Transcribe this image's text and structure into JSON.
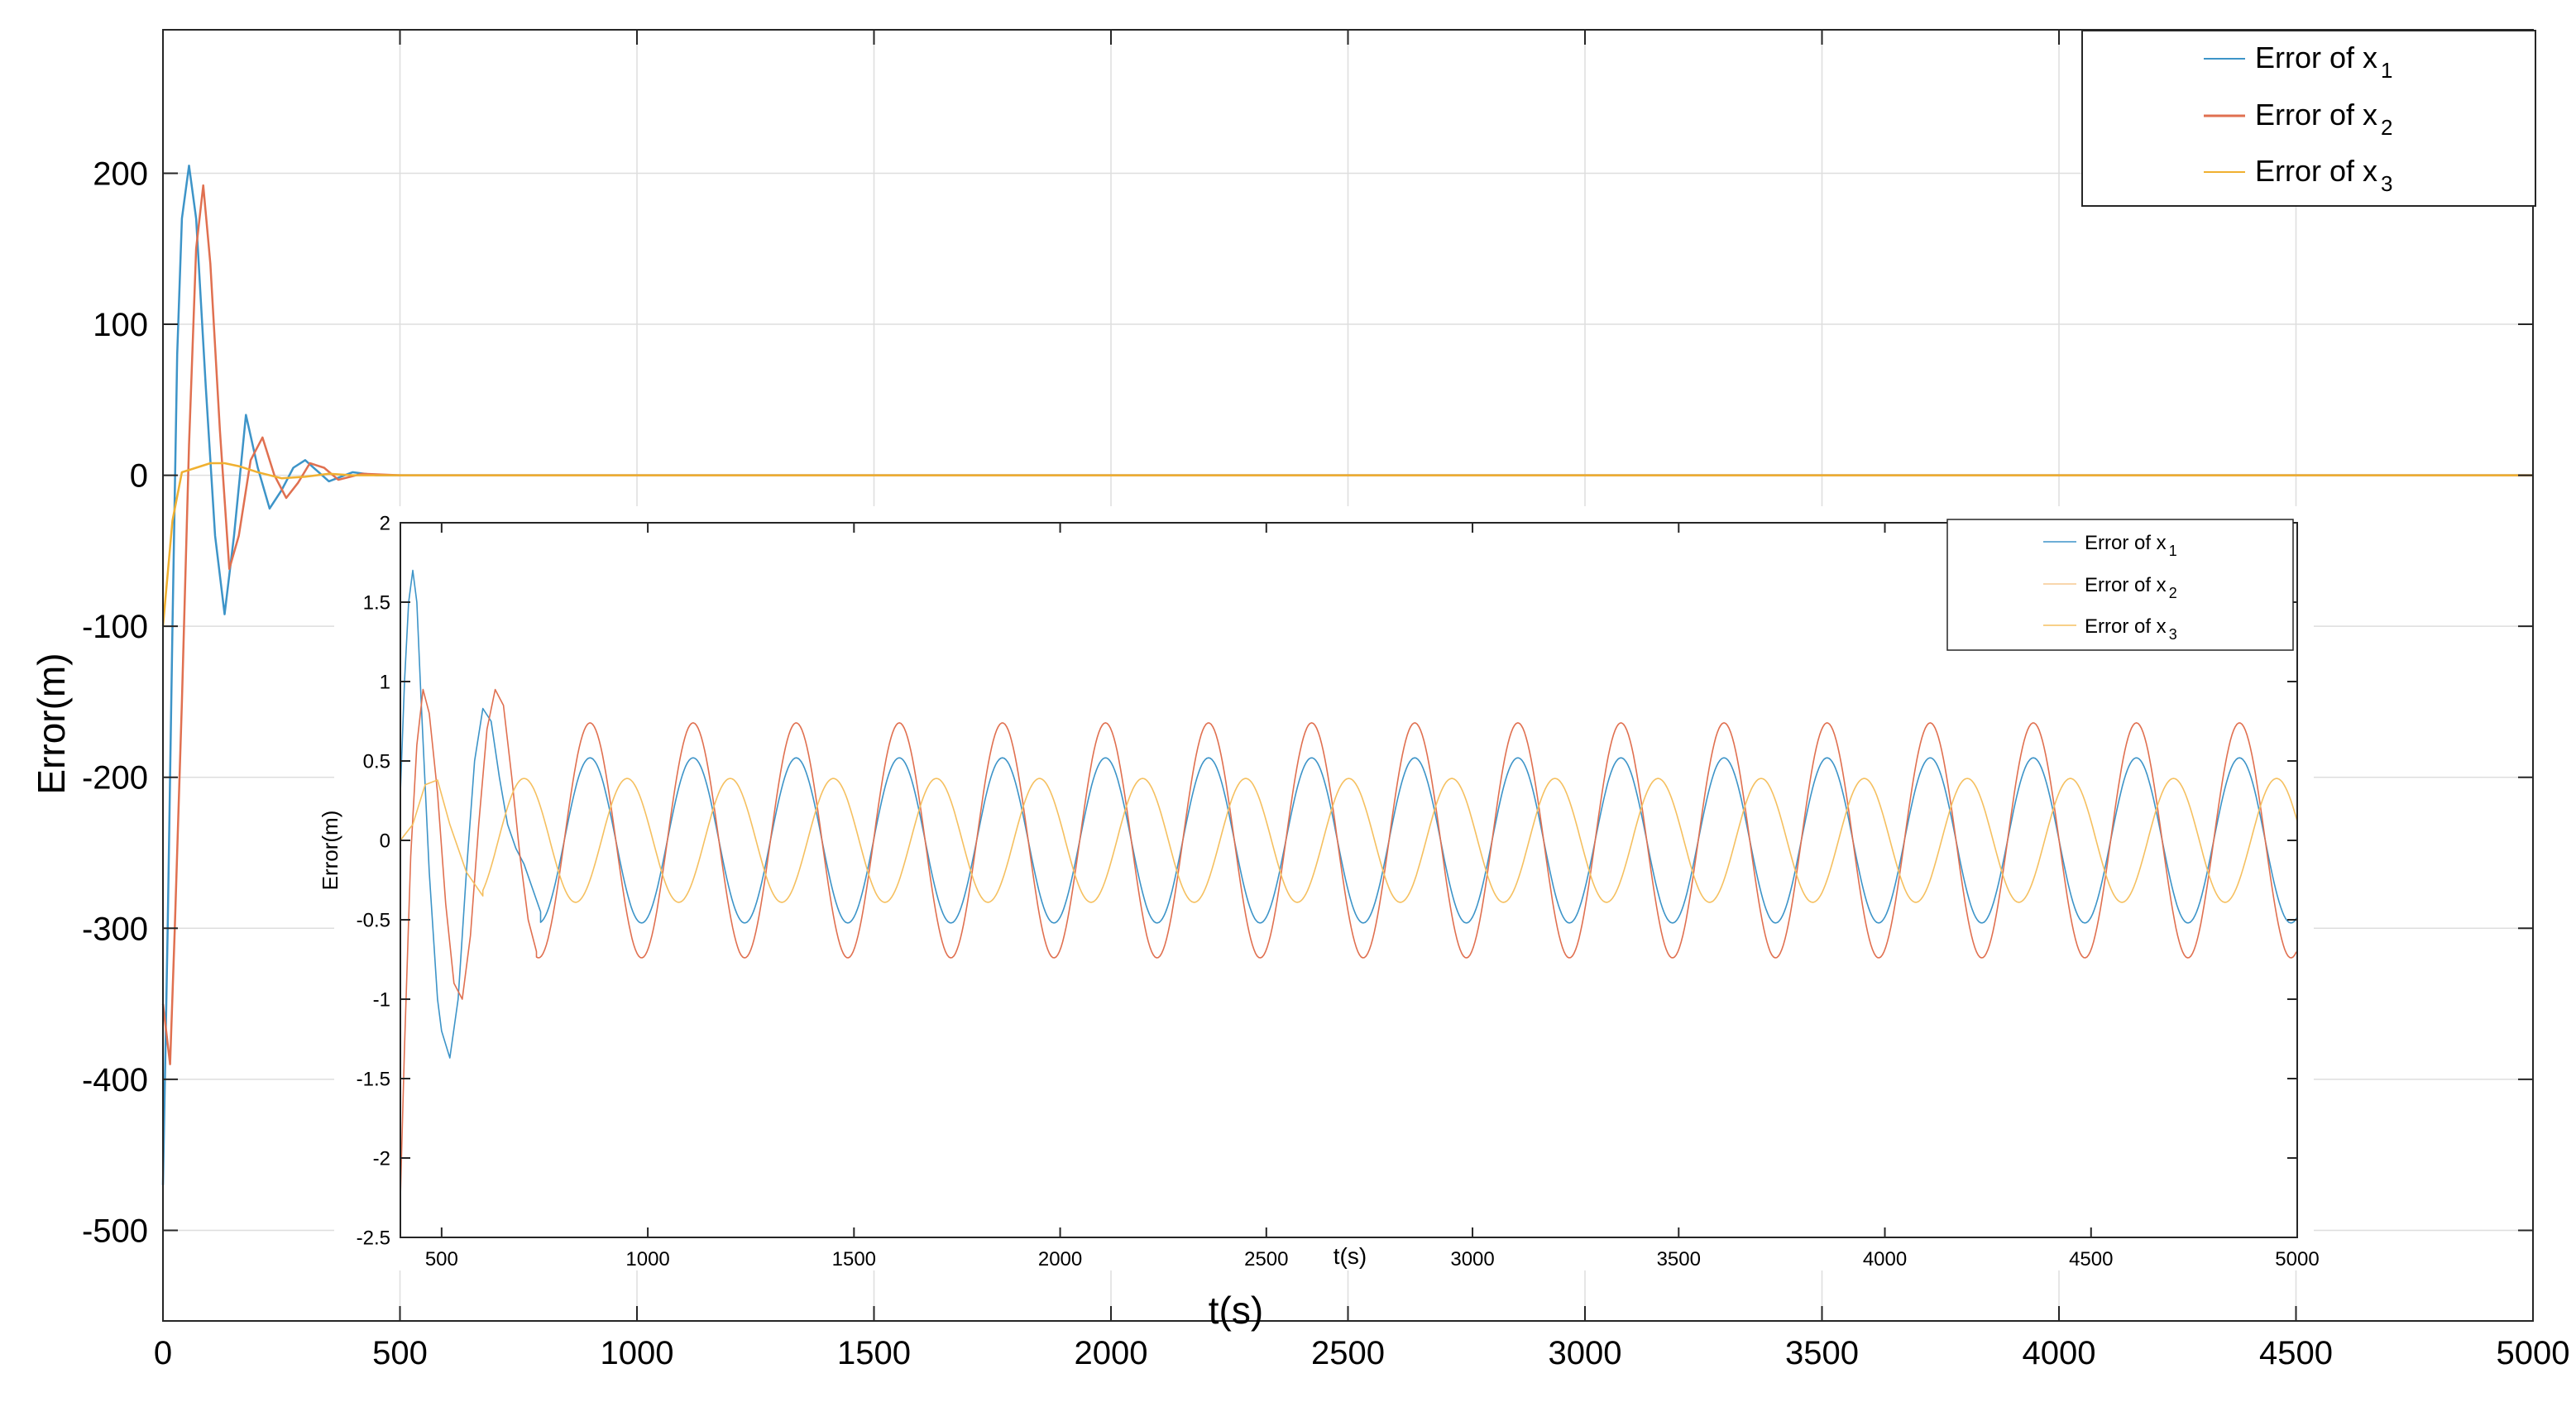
{
  "chart_data": [
    {
      "id": "main",
      "type": "line",
      "title": "",
      "xlabel": "t(s)",
      "ylabel": "Error(m)",
      "xlim": [
        0,
        5000
      ],
      "ylim": [
        -560,
        295
      ],
      "xticks": [
        0,
        500,
        1000,
        1500,
        2000,
        2500,
        3000,
        3500,
        4000,
        4500,
        5000
      ],
      "yticks": [
        -500,
        -400,
        -300,
        -200,
        -100,
        0,
        100,
        200
      ],
      "grid": true,
      "legend": "top-right",
      "series": [
        {
          "name": "Error of x",
          "sub": "1",
          "color": "#3d94c8",
          "x": [
            0,
            10,
            20,
            30,
            40,
            55,
            70,
            90,
            110,
            130,
            150,
            175,
            200,
            225,
            250,
            275,
            300,
            325,
            350,
            400,
            450,
            500,
            600,
            800,
            1000,
            5000
          ],
          "y": [
            -470,
            -300,
            -100,
            80,
            170,
            205,
            170,
            60,
            -40,
            -92,
            -40,
            40,
            5,
            -22,
            -10,
            5,
            10,
            3,
            -4,
            2,
            0,
            0,
            0,
            0,
            0,
            0
          ]
        },
        {
          "name": "Error of x",
          "sub": "2",
          "color": "#e07050",
          "x": [
            0,
            15,
            25,
            40,
            55,
            70,
            85,
            100,
            120,
            140,
            160,
            185,
            210,
            235,
            260,
            285,
            310,
            340,
            370,
            420,
            500,
            600,
            800,
            1000,
            5000
          ],
          "y": [
            -350,
            -390,
            -300,
            -150,
            20,
            150,
            192,
            140,
            30,
            -62,
            -40,
            10,
            25,
            0,
            -15,
            -5,
            8,
            5,
            -3,
            1,
            0,
            0,
            0,
            0,
            0
          ]
        },
        {
          "name": "Error of x",
          "sub": "3",
          "color": "#f0b030",
          "x": [
            0,
            20,
            40,
            70,
            100,
            130,
            160,
            200,
            250,
            300,
            350,
            400,
            500,
            1000,
            5000
          ],
          "y": [
            -100,
            -30,
            2,
            5,
            8,
            8,
            6,
            2,
            -2,
            -1,
            1,
            0,
            0,
            0,
            0
          ]
        }
      ]
    },
    {
      "id": "inset",
      "type": "line",
      "title": "",
      "xlabel": "t(s)",
      "ylabel": "Error(m)",
      "xlim": [
        400,
        5000
      ],
      "ylim": [
        -2.5,
        2
      ],
      "xticks": [
        500,
        1000,
        1500,
        2000,
        2500,
        3000,
        3500,
        4000,
        4500,
        5000
      ],
      "yticks": [
        -2.5,
        -2,
        -1.5,
        -1,
        -0.5,
        0,
        0.5,
        1,
        1.5,
        2
      ],
      "grid": false,
      "legend": "top-right",
      "series": [
        {
          "name": "Error of x",
          "sub": "1",
          "color": "#3d94c8",
          "x": [
            400,
            410,
            420,
            430,
            440,
            450,
            470,
            490,
            500,
            520,
            540,
            560,
            580,
            600,
            620,
            640,
            660,
            680,
            700,
            720,
            740
          ],
          "y": [
            0.3,
            1.0,
            1.5,
            1.7,
            1.5,
            0.9,
            -0.2,
            -1.0,
            -1.2,
            -1.37,
            -1.0,
            -0.2,
            0.5,
            0.83,
            0.75,
            0.4,
            0.1,
            -0.05,
            -0.15,
            -0.3,
            -0.45
          ],
          "steady": {
            "amp": 0.52,
            "period": 250,
            "phase_t": 860,
            "bias": 0.0,
            "from": 740
          }
        },
        {
          "name": "Error of x",
          "sub": "2",
          "color": "#e07050",
          "x": [
            400,
            410,
            425,
            440,
            455,
            470,
            490,
            510,
            530,
            550,
            570,
            590,
            610,
            630,
            650,
            670,
            690,
            710,
            730
          ],
          "y": [
            -2.25,
            -1.3,
            -0.1,
            0.6,
            0.95,
            0.8,
            0.3,
            -0.4,
            -0.9,
            -1.0,
            -0.6,
            0.1,
            0.7,
            0.95,
            0.85,
            0.4,
            -0.1,
            -0.5,
            -0.7
          ],
          "steady": {
            "amp": 0.74,
            "period": 250,
            "phase_t": 860,
            "bias": 0.0,
            "from": 730
          }
        },
        {
          "name": "Error of x",
          "sub": "3",
          "color": "#f5c060",
          "x": [
            400,
            430,
            460,
            490,
            520,
            560,
            600
          ],
          "y": [
            0.0,
            0.1,
            0.35,
            0.38,
            0.1,
            -0.2,
            -0.35
          ],
          "steady": {
            "amp": 0.39,
            "period": 250,
            "phase_t": 700,
            "bias": 0.0,
            "from": 600
          }
        }
      ]
    }
  ]
}
